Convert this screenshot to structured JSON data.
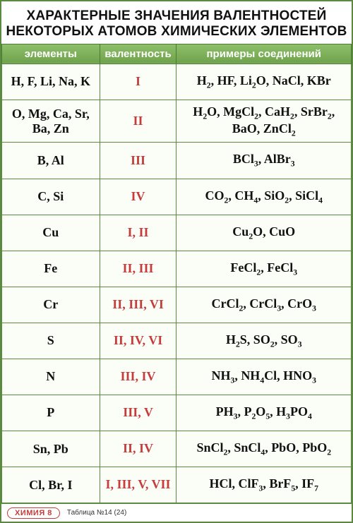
{
  "title": "ХАРАКТЕРНЫЕ ЗНАЧЕНИЯ ВАЛЕНТНОСТЕЙ НЕКОТОРЫХ АТОМОВ ХИМИЧЕСКИХ ЭЛЕМЕНТОВ",
  "header_bg": "#6fa24c",
  "header_bg_light": "#8fbf6a",
  "valence_color": "#c43c3c",
  "columns": {
    "elements": "элементы",
    "valence": "валентность",
    "compounds": "примеры соединений"
  },
  "rows": [
    {
      "elements": "H, F, Li, Na, K",
      "valence": "I",
      "compounds": "H<sub>2</sub>, HF, Li<sub>2</sub>O, NaCl, KBr"
    },
    {
      "elements": "O, Mg, Ca, Sr, Ba, Zn",
      "valence": "II",
      "compounds": "H<sub>2</sub>O, MgCl<sub>2</sub>, CaH<sub>2</sub>, SrBr<sub>2</sub>, BaO, ZnCl<sub>2</sub>"
    },
    {
      "elements": "B, Al",
      "valence": "III",
      "compounds": "BCl<sub>3</sub>, AlBr<sub>3</sub>"
    },
    {
      "elements": "C, Si",
      "valence": "IV",
      "compounds": "CO<sub>2</sub>, CH<sub>4</sub>, SiO<sub>2</sub>, SiCl<sub>4</sub>"
    },
    {
      "elements": "Cu",
      "valence": "I, II",
      "compounds": "Cu<sub>2</sub>O, CuO"
    },
    {
      "elements": "Fe",
      "valence": "II, III",
      "compounds": "FeCl<sub>2</sub>, FeCl<sub>3</sub>"
    },
    {
      "elements": "Cr",
      "valence": "II, III, VI",
      "compounds": "CrCl<sub>2</sub>, CrCl<sub>3</sub>, CrO<sub>3</sub>"
    },
    {
      "elements": "S",
      "valence": "II, IV, VI",
      "compounds": "H<sub>2</sub>S, SO<sub>2</sub>, SO<sub>3</sub>"
    },
    {
      "elements": "N",
      "valence": "III, IV",
      "compounds": "NH<sub>3</sub>, NH<sub>4</sub>Cl, HNO<sub>3</sub>"
    },
    {
      "elements": "P",
      "valence": "III, V",
      "compounds": "PH<sub>3</sub>, P<sub>2</sub>O<sub>5</sub>, H<sub>3</sub>PO<sub>4</sub>"
    },
    {
      "elements": "Sn, Pb",
      "valence": "II, IV",
      "compounds": "SnCl<sub>2</sub>, SnCl<sub>4</sub>, PbO, PbO<sub>2</sub>"
    },
    {
      "elements": "Cl, Br, I",
      "valence": "I, III, V, VII",
      "compounds": "HCl, ClF<sub>3</sub>, BrF<sub>5</sub>, IF<sub>7</sub>"
    }
  ],
  "footer": {
    "badge": "ХИМИЯ 8",
    "meta": "Таблица №14 (24)"
  }
}
